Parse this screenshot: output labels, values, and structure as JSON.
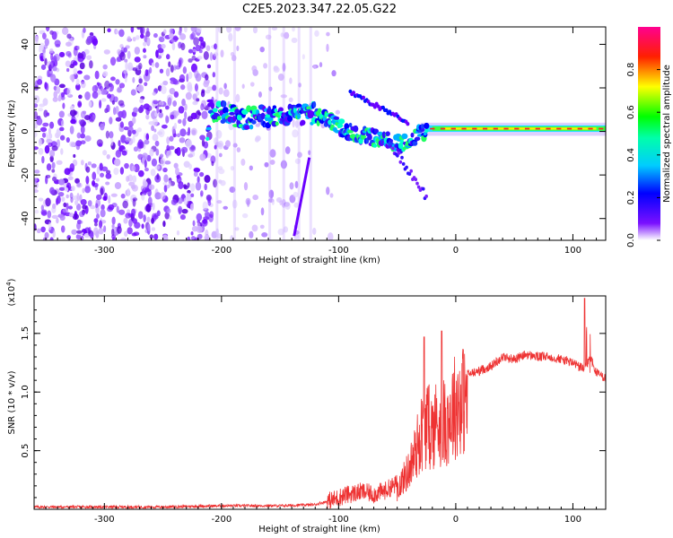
{
  "figure_title": "C2E5.2023.347.22.05.G22",
  "chart_data": [
    {
      "type": "heatmap",
      "xlabel": "Height of straight line (km)",
      "ylabel": "Frequency (Hz)",
      "xlim": [
        -360,
        128
      ],
      "ylim": [
        -50,
        48
      ],
      "xticks": [
        "-300",
        "-200",
        "-100",
        "0",
        "100"
      ],
      "yticks": [
        "40",
        "20",
        "0",
        "-20",
        "-40"
      ],
      "colorbar": {
        "label": "Normalized spectral amplitude",
        "range": [
          0,
          1
        ],
        "ticks": [
          "0.0",
          "0.2",
          "0.4",
          "0.6",
          "0.8"
        ],
        "colormap": [
          "#ffffff",
          "#6a00ff",
          "#0000ff",
          "#00ffff",
          "#00ff00",
          "#ffff00",
          "#ff0000",
          "#ff00a0"
        ]
      },
      "features": {
        "noise_region_x": [
          -360,
          -120
        ],
        "signal_trace": [
          {
            "x": -210,
            "y": 10
          },
          {
            "x": -180,
            "y": 6
          },
          {
            "x": -150,
            "y": 8
          },
          {
            "x": -120,
            "y": 8
          },
          {
            "x": -100,
            "y": 2
          },
          {
            "x": -80,
            "y": -2
          },
          {
            "x": -60,
            "y": -4
          },
          {
            "x": -45,
            "y": -6
          },
          {
            "x": -30,
            "y": -1
          },
          {
            "x": 0,
            "y": 1
          },
          {
            "x": 50,
            "y": 1
          },
          {
            "x": 128,
            "y": 1
          }
        ]
      }
    },
    {
      "type": "line",
      "xlabel": "Height of straight line (km)",
      "ylabel": "SNR (10 * v/v)",
      "y_multiplier": "(x10^4)",
      "xlim": [
        -360,
        128
      ],
      "ylim": [
        0,
        1.82
      ],
      "xticks": [
        "-300",
        "-200",
        "-100",
        "0",
        "100"
      ],
      "yticks": [
        "0.5",
        "1.0",
        "1.5"
      ],
      "series": [
        {
          "color": "#ee3333",
          "x": [
            -360,
            -300,
            -250,
            -200,
            -150,
            -120,
            -105,
            -95,
            -80,
            -70,
            -60,
            -50,
            -45,
            -40,
            -35,
            -30,
            -25,
            -20,
            -15,
            -10,
            -5,
            0,
            5,
            10,
            20,
            30,
            40,
            50,
            60,
            70,
            80,
            90,
            100,
            105,
            110,
            115,
            120,
            128
          ],
          "y": [
            0.02,
            0.02,
            0.02,
            0.03,
            0.03,
            0.04,
            0.08,
            0.12,
            0.15,
            0.13,
            0.16,
            0.22,
            0.3,
            0.4,
            0.55,
            0.75,
            0.85,
            0.8,
            0.9,
            0.85,
            0.95,
            1.05,
            1.08,
            1.15,
            1.18,
            1.22,
            1.3,
            1.28,
            1.32,
            1.3,
            1.3,
            1.28,
            1.25,
            1.22,
            1.2,
            1.3,
            1.16,
            1.12
          ]
        }
      ]
    }
  ]
}
